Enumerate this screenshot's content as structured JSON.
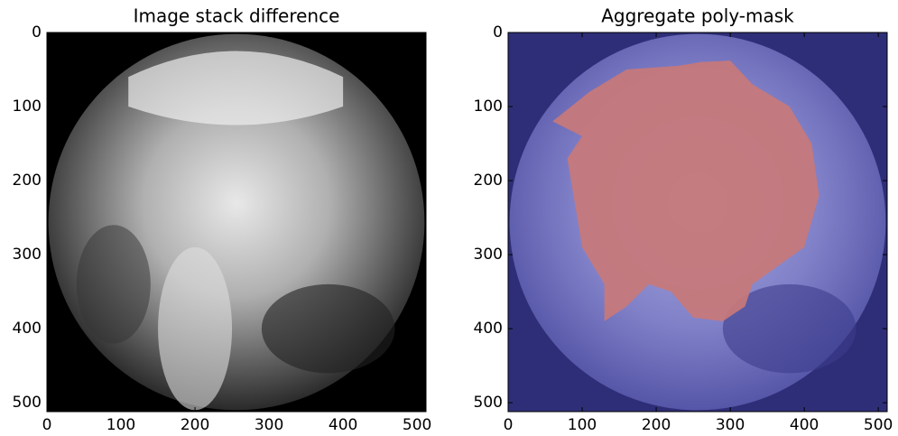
{
  "chart_data": [
    {
      "type": "image",
      "title": "Image stack difference",
      "xlim": [
        0,
        512
      ],
      "ylim": [
        512,
        0
      ],
      "xticks": [
        0,
        100,
        200,
        300,
        400,
        500
      ],
      "yticks": [
        0,
        100,
        200,
        300,
        400,
        500
      ]
    },
    {
      "type": "image",
      "title": "Aggregate poly-mask",
      "xlim": [
        0,
        512
      ],
      "ylim": [
        512,
        0
      ],
      "xticks": [
        0,
        100,
        200,
        300,
        400,
        500
      ],
      "yticks": [
        0,
        100,
        200,
        300,
        400,
        500
      ]
    }
  ]
}
